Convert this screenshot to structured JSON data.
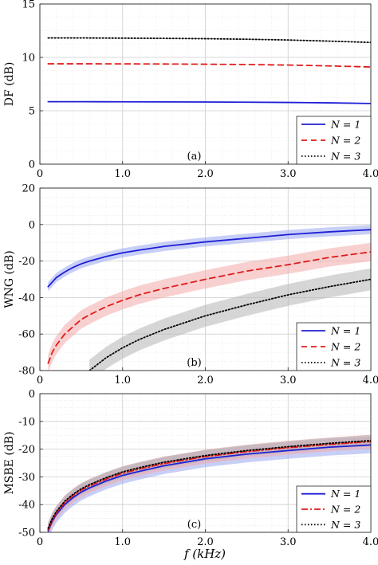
{
  "figure": {
    "x_axis_label": "f (kHz)"
  },
  "chart_data": [
    {
      "type": "line",
      "panel_label": "(a)",
      "ylabel": "DF (dB)",
      "xlabel": "",
      "xlim": [
        0,
        4.0
      ],
      "ylim": [
        0,
        15
      ],
      "x_ticks": [
        0,
        1.0,
        2.0,
        3.0,
        4.0
      ],
      "x_tick_labels": [
        "0",
        "1.0",
        "2.0",
        "3.0",
        "4.0"
      ],
      "y_ticks": [
        0,
        5,
        10,
        15
      ],
      "y_tick_labels": [
        "0",
        "5",
        "10",
        "15"
      ],
      "grid": true,
      "minor_grid": true,
      "legend_position": "bottom-right",
      "x": [
        0.1,
        0.5,
        1.0,
        1.5,
        2.0,
        2.5,
        3.0,
        3.5,
        4.0
      ],
      "series": [
        {
          "name": "N = 1",
          "color": "#1f1fd6",
          "dash": "solid",
          "values": [
            5.85,
            5.85,
            5.84,
            5.83,
            5.82,
            5.8,
            5.78,
            5.74,
            5.68
          ],
          "band": null
        },
        {
          "name": "N = 2",
          "color": "#e01b1b",
          "dash": "dashed",
          "values": [
            9.4,
            9.4,
            9.39,
            9.38,
            9.36,
            9.33,
            9.28,
            9.2,
            9.1
          ],
          "band": null
        },
        {
          "name": "N = 3",
          "color": "#000000",
          "dash": "dotted",
          "values": [
            11.82,
            11.82,
            11.8,
            11.78,
            11.75,
            11.7,
            11.63,
            11.52,
            11.4
          ],
          "band": null
        }
      ]
    },
    {
      "type": "line",
      "panel_label": "(b)",
      "ylabel": "WNG (dB)",
      "xlabel": "",
      "xlim": [
        0,
        4.0
      ],
      "ylim": [
        -80,
        20
      ],
      "x_ticks": [
        0,
        1.0,
        2.0,
        3.0,
        4.0
      ],
      "x_tick_labels": [
        "0",
        "1.0",
        "2.0",
        "3.0",
        "4.0"
      ],
      "y_ticks": [
        -80,
        -60,
        -40,
        -20,
        0,
        20
      ],
      "y_tick_labels": [
        "-80",
        "-60",
        "-40",
        "-20",
        "0",
        "20"
      ],
      "grid": true,
      "minor_grid": true,
      "legend_position": "bottom-right",
      "x": [
        0.1,
        0.15,
        0.2,
        0.3,
        0.4,
        0.5,
        0.6,
        0.8,
        1.0,
        1.2,
        1.5,
        2.0,
        2.5,
        3.0,
        3.5,
        4.0
      ],
      "series": [
        {
          "name": "N = 1",
          "color": "#1f1fd6",
          "dash": "solid",
          "band_color": "#9aa8f0",
          "values": [
            -34.0,
            -31.5,
            -29.0,
            -26.0,
            -23.5,
            -21.5,
            -20.0,
            -17.5,
            -15.5,
            -14.0,
            -12.0,
            -9.5,
            -7.5,
            -5.5,
            -4.0,
            -2.8
          ],
          "band": 2.5
        },
        {
          "name": "N = 2",
          "color": "#e01b1b",
          "dash": "dashed",
          "band_color": "#f3a9a9",
          "values": [
            -76.0,
            -70.0,
            -66.0,
            -60.0,
            -56.0,
            -52.0,
            -49.5,
            -45.0,
            -41.5,
            -38.5,
            -35.0,
            -30.0,
            -25.5,
            -22.0,
            -18.0,
            -15.0
          ],
          "band": 5.0
        },
        {
          "name": "N = 3",
          "color": "#000000",
          "dash": "dotted",
          "band_color": "#b5b5b5",
          "values": [
            null,
            null,
            null,
            null,
            null,
            null,
            -80.0,
            -73.0,
            -67.5,
            -63.0,
            -57.5,
            -50.0,
            -44.0,
            -38.5,
            -34.0,
            -30.0
          ],
          "band": 6.0
        }
      ]
    },
    {
      "type": "line",
      "panel_label": "(c)",
      "ylabel": "MSBE (dB)",
      "xlabel": "f (kHz)",
      "xlim": [
        0,
        4.0
      ],
      "ylim": [
        -50,
        0
      ],
      "x_ticks": [
        0,
        1.0,
        2.0,
        3.0,
        4.0
      ],
      "x_tick_labels": [
        "0",
        "1.0",
        "2.0",
        "3.0",
        "4.0"
      ],
      "y_ticks": [
        -50,
        -40,
        -30,
        -20,
        -10,
        0
      ],
      "y_tick_labels": [
        "-50",
        "-40",
        "-30",
        "-20",
        "-10",
        "0"
      ],
      "grid": true,
      "minor_grid": true,
      "legend_position": "bottom-right",
      "x": [
        0.1,
        0.15,
        0.2,
        0.3,
        0.4,
        0.5,
        0.6,
        0.8,
        1.0,
        1.2,
        1.5,
        2.0,
        2.5,
        3.0,
        3.5,
        4.0
      ],
      "series": [
        {
          "name": "N = 1",
          "color": "#1f1fd6",
          "dash": "solid",
          "band_color": "#9aa8f0",
          "values": [
            -49.5,
            -46.0,
            -43.5,
            -40.0,
            -37.5,
            -35.5,
            -34.0,
            -31.5,
            -29.5,
            -28.0,
            -26.0,
            -23.5,
            -21.8,
            -20.5,
            -19.3,
            -18.5
          ],
          "band": 3.0
        },
        {
          "name": "N = 2",
          "color": "#e01b1b",
          "dash": "dashdot",
          "band_color": "#f3a9a9",
          "values": [
            -49.0,
            -45.5,
            -43.0,
            -39.3,
            -36.8,
            -34.8,
            -33.3,
            -30.8,
            -28.7,
            -27.2,
            -25.2,
            -22.7,
            -20.9,
            -19.5,
            -18.3,
            -17.3
          ],
          "band": 2.5
        },
        {
          "name": "N = 3",
          "color": "#000000",
          "dash": "dotted",
          "band_color": "#b5b5b5",
          "values": [
            -48.5,
            -45.0,
            -42.5,
            -38.8,
            -36.3,
            -34.3,
            -32.8,
            -30.3,
            -28.2,
            -26.7,
            -24.7,
            -22.3,
            -20.5,
            -19.1,
            -17.9,
            -16.9
          ],
          "band": 2.0
        }
      ]
    }
  ]
}
